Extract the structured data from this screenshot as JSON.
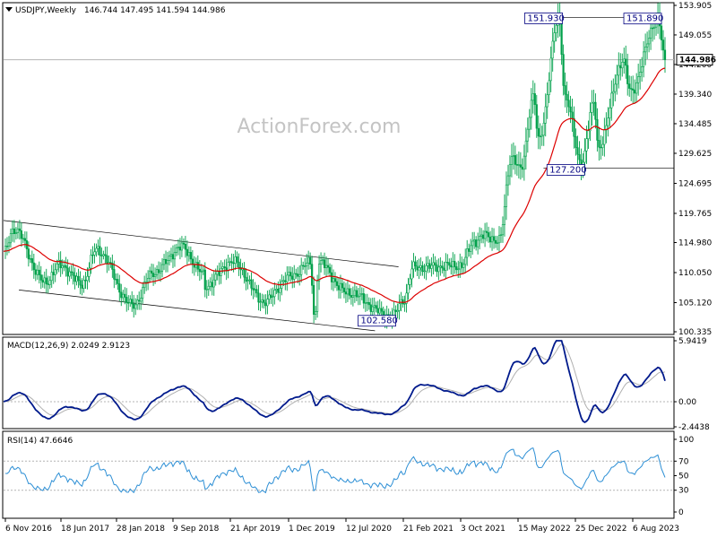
{
  "header": {
    "symbol": "USDJPY,Weekly",
    "ohlc": "146.744 147.495 141.594 144.986"
  },
  "watermark": "ActionForex.com",
  "colors": {
    "background": "#ffffff",
    "candle": "#00a04a",
    "ma": "#dd0000",
    "macd": "#001a8c",
    "signal": "#b0b0b0",
    "rsi": "#2d8fd5",
    "channel": "#000000",
    "hline": "#b4b4b4",
    "grid": "#b4b4b4"
  },
  "chart_data": [
    {
      "type": "candlestick",
      "panel": "price",
      "title": "USDJPY,Weekly",
      "ylim": [
        100.335,
        153.905
      ],
      "y_ticks": [
        153.905,
        149.055,
        144.2,
        139.34,
        134.485,
        129.625,
        124.695,
        119.765,
        114.98,
        110.05,
        105.12,
        100.335
      ],
      "x_tick_labels": [
        "6 Nov 2016",
        "18 Jun 2017",
        "28 Jan 2018",
        "9 Sep 2018",
        "21 Apr 2019",
        "1 Dec 2019",
        "12 Jul 2020",
        "21 Feb 2021",
        "3 Oct 2021",
        "15 May 2022",
        "25 Dec 2022",
        "6 Aug 2023"
      ],
      "current_price": 144.986,
      "annotations": [
        {
          "text": "151.930",
          "value": 151.93,
          "date": "2022-10-21"
        },
        {
          "text": "151.890",
          "value": 151.89,
          "date": "2023-11-13"
        },
        {
          "text": "127.200",
          "value": 127.2,
          "date": "2023-01-16"
        },
        {
          "text": "102.580",
          "value": 102.58,
          "date": "2021-01-06"
        }
      ],
      "anchors": [
        {
          "date": "2016-11-06",
          "close": 113.2
        },
        {
          "date": "2016-12-15",
          "close": 117.2
        },
        {
          "date": "2017-04-17",
          "close": 108.5
        },
        {
          "date": "2017-06-18",
          "close": 111.3
        },
        {
          "date": "2017-09-08",
          "close": 108.2
        },
        {
          "date": "2017-11-06",
          "close": 113.8
        },
        {
          "date": "2018-03-26",
          "close": 104.7
        },
        {
          "date": "2018-06-18",
          "close": 110.1
        },
        {
          "date": "2018-10-04",
          "close": 114.2
        },
        {
          "date": "2018-12-26",
          "close": 110.0
        },
        {
          "date": "2019-01-03",
          "close": 107.8
        },
        {
          "date": "2019-04-21",
          "close": 111.8
        },
        {
          "date": "2019-08-26",
          "close": 105.3
        },
        {
          "date": "2019-12-01",
          "close": 109.3
        },
        {
          "date": "2020-02-20",
          "close": 111.6
        },
        {
          "date": "2020-03-09",
          "close": 102.4
        },
        {
          "date": "2020-03-24",
          "close": 111.7
        },
        {
          "date": "2020-07-12",
          "close": 106.8
        },
        {
          "date": "2021-01-06",
          "close": 102.8
        },
        {
          "date": "2021-02-21",
          "close": 105.6
        },
        {
          "date": "2021-03-31",
          "close": 110.9
        },
        {
          "date": "2021-10-03",
          "close": 111.2
        },
        {
          "date": "2021-11-24",
          "close": 115.3
        },
        {
          "date": "2022-01-04",
          "close": 116.1
        },
        {
          "date": "2022-03-01",
          "close": 115.3
        },
        {
          "date": "2022-04-20",
          "close": 129.2
        },
        {
          "date": "2022-05-24",
          "close": 126.8
        },
        {
          "date": "2022-07-14",
          "close": 139.1
        },
        {
          "date": "2022-08-02",
          "close": 131.6
        },
        {
          "date": "2022-10-21",
          "close": 151.5
        },
        {
          "date": "2022-11-15",
          "close": 139.0
        },
        {
          "date": "2023-01-16",
          "close": 128.0
        },
        {
          "date": "2023-03-08",
          "close": 137.8
        },
        {
          "date": "2023-03-24",
          "close": 130.7
        },
        {
          "date": "2023-06-30",
          "close": 144.8
        },
        {
          "date": "2023-07-28",
          "close": 139.8
        },
        {
          "date": "2023-11-13",
          "close": 151.6
        },
        {
          "date": "2023-12-11",
          "close": 144.986
        }
      ]
    },
    {
      "type": "line",
      "panel": "macd",
      "title": "MACD(12,26,9) 2.0249 2.9123",
      "ylim": [
        -2.4438,
        5.9419
      ],
      "y_ticks": [
        5.9419,
        0.0,
        -2.4438
      ],
      "series": [
        {
          "name": "MACD",
          "indicator": "macd",
          "value": 2.0249
        },
        {
          "name": "Signal",
          "indicator": "signal",
          "value": 2.9123
        }
      ]
    },
    {
      "type": "line",
      "panel": "rsi",
      "title": "RSI(14) 47.6646",
      "ylim": [
        0,
        100
      ],
      "y_ticks": [
        100,
        70,
        50,
        30,
        0
      ],
      "series": [
        {
          "name": "RSI",
          "indicator": "rsi",
          "value": 47.6646
        }
      ]
    }
  ]
}
